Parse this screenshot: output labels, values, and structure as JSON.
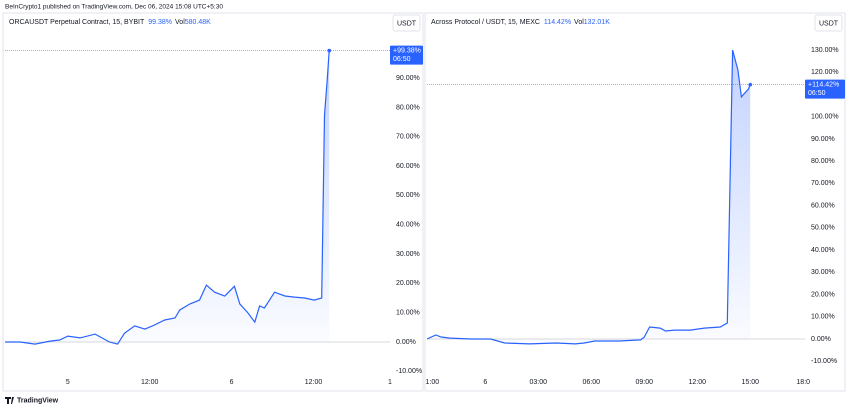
{
  "header": {
    "text": "BeInCrypto1 published on TradingView.com, Dec 06, 2024 15:08 UTC+5:30"
  },
  "footer": {
    "brand": "TradingView"
  },
  "chart_data": [
    {
      "type": "line",
      "title": "ORCAUSDT Perpetual Contract, 15, BYBIT",
      "change": "99.38%",
      "volume_label": "Vol",
      "volume": "580.48K",
      "currency": "USDT",
      "series": [
        {
          "name": "ORCAUSDT",
          "color": "#2962ff",
          "values": [
            0,
            0,
            -0.7,
            0.3,
            0.7,
            2,
            1.4,
            2.7,
            0,
            -0.7,
            3,
            5.5,
            4.4,
            5.8,
            7.5,
            8.2,
            10.9,
            13,
            14.3,
            19.4,
            17,
            15.7,
            19,
            13,
            10.2,
            6.8,
            12.3,
            11.6,
            17,
            15.7,
            15.3,
            15,
            14.3,
            15,
            77.4,
            89.3,
            99.38
          ]
        }
      ],
      "x": [
        -9.2,
        -7,
        -4.8,
        -2.6,
        -1.2,
        0,
        1.8,
        4,
        6.1,
        7.3,
        8.3,
        9.8,
        11.3,
        12.7,
        14.2,
        15.7,
        16.4,
        17.9,
        19.3,
        20.3,
        21.5,
        23,
        24.4,
        25.2,
        26.3,
        27.4,
        28.1,
        28.8,
        30.3,
        31.8,
        33.2,
        34.7,
        36.1,
        37.2,
        37.6,
        38,
        38.3
      ],
      "xlim": [
        -9.2,
        47.2
      ],
      "ylim": [
        -11.25,
        106.4
      ],
      "xticks": [
        {
          "value": 0,
          "label": "5"
        },
        {
          "value": 12,
          "label": "12:00"
        },
        {
          "value": 24,
          "label": "6"
        },
        {
          "value": 36,
          "label": "12:00"
        },
        {
          "value": 47.2,
          "label": "1"
        }
      ],
      "yticks": [
        {
          "value": -10,
          "label": "-10.00%"
        },
        {
          "value": 0,
          "label": "0.00%"
        },
        {
          "value": 10,
          "label": "10.00%"
        },
        {
          "value": 20,
          "label": "20.00%"
        },
        {
          "value": 30,
          "label": "30.00%"
        },
        {
          "value": 40,
          "label": "40.00%"
        },
        {
          "value": 50,
          "label": "50.00%"
        },
        {
          "value": 60,
          "label": "60.00%"
        },
        {
          "value": 70,
          "label": "70.00%"
        },
        {
          "value": 80,
          "label": "80.00%"
        },
        {
          "value": 90,
          "label": "90.00%"
        }
      ],
      "last_label": "+99.38%",
      "last_time": "06:50"
    },
    {
      "type": "line",
      "title": "Across Protocol / USDT, 15, MEXC",
      "change": "114.42%",
      "volume_label": "Vol",
      "volume": "132.01K",
      "currency": "USDT",
      "series": [
        {
          "name": "ACXUSDT",
          "color": "#2962ff",
          "values": [
            0,
            1.8,
            0.9,
            0.4,
            0,
            0,
            -1.8,
            -2.2,
            -1.8,
            -2.2,
            -1.8,
            -0.9,
            -0.9,
            -0.4,
            0.9,
            5.4,
            4.9,
            3.6,
            4,
            4,
            4.9,
            5.4,
            7.2,
            130,
            121,
            108.9,
            112.5,
            114.42
          ]
        }
      ],
      "x": [
        -3.3,
        -2.8,
        -2.5,
        -2,
        -0.8,
        0.3,
        1.1,
        2.5,
        4,
        5.1,
        5.6,
        6.2,
        7.6,
        8.8,
        9,
        9.3,
        9.9,
        10.2,
        10.7,
        11.6,
        12.4,
        13.3,
        13.7,
        14,
        14.3,
        14.5,
        14.9,
        15
      ],
      "xlim": [
        -3.3,
        18.1
      ],
      "ylim": [
        -16.2,
        139
      ],
      "xticks": [
        {
          "value": -3,
          "label": "1:00"
        },
        {
          "value": 0,
          "label": "6"
        },
        {
          "value": 3,
          "label": "03:00"
        },
        {
          "value": 6,
          "label": "06:00"
        },
        {
          "value": 9,
          "label": "09:00"
        },
        {
          "value": 12,
          "label": "12:00"
        },
        {
          "value": 15,
          "label": "15:00"
        },
        {
          "value": 18,
          "label": "18:0"
        }
      ],
      "yticks": [
        {
          "value": -10,
          "label": "-10.00%"
        },
        {
          "value": 0,
          "label": "0.00%"
        },
        {
          "value": 10,
          "label": "10.00%"
        },
        {
          "value": 20,
          "label": "20.00%"
        },
        {
          "value": 30,
          "label": "30.00%"
        },
        {
          "value": 40,
          "label": "40.00%"
        },
        {
          "value": 50,
          "label": "50.00%"
        },
        {
          "value": 60,
          "label": "60.00%"
        },
        {
          "value": 70,
          "label": "70.00%"
        },
        {
          "value": 80,
          "label": "80.00%"
        },
        {
          "value": 90,
          "label": "90.00%"
        },
        {
          "value": 100,
          "label": "100.00%"
        },
        {
          "value": 110,
          "label": "110.00%"
        },
        {
          "value": 120,
          "label": "120.00%"
        },
        {
          "value": 130,
          "label": "130.00%"
        }
      ],
      "last_label": "+114.42%",
      "last_time": "06:50"
    }
  ]
}
